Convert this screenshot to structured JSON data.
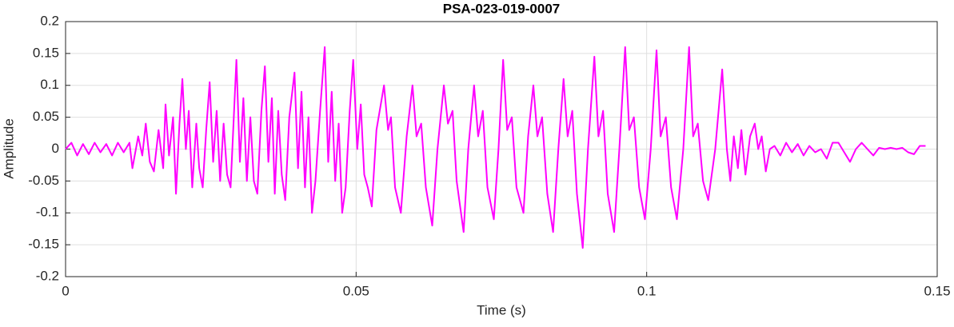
{
  "chart_data": {
    "type": "line",
    "title": "PSA-023-019-0007",
    "x_label": "Time (s)",
    "y_label": "Amplitude",
    "xlim": [
      0,
      0.15
    ],
    "ylim": [
      -0.2,
      0.2
    ],
    "xticks": [
      0,
      0.05,
      0.1,
      0.15
    ],
    "yticks": [
      -0.2,
      -0.15,
      -0.1,
      -0.05,
      0,
      0.05,
      0.1,
      0.15,
      0.2
    ],
    "grid": true,
    "series": [
      {
        "color": "#ff00ff",
        "x": [
          0,
          0.001,
          0.002,
          0.003,
          0.004,
          0.005,
          0.006,
          0.007,
          0.008,
          0.009,
          0.01,
          0.011,
          0.0115,
          0.0125,
          0.0132,
          0.0138,
          0.0145,
          0.0152,
          0.016,
          0.0168,
          0.0172,
          0.0178,
          0.0185,
          0.019,
          0.0196,
          0.0201,
          0.0207,
          0.0212,
          0.0218,
          0.0225,
          0.023,
          0.0236,
          0.0242,
          0.0248,
          0.0254,
          0.026,
          0.0266,
          0.0272,
          0.0278,
          0.0284,
          0.029,
          0.0294,
          0.03,
          0.0306,
          0.0312,
          0.0318,
          0.0324,
          0.033,
          0.0337,
          0.0343,
          0.0349,
          0.0355,
          0.036,
          0.0366,
          0.0372,
          0.0378,
          0.0385,
          0.0394,
          0.04,
          0.0406,
          0.0412,
          0.0418,
          0.0424,
          0.043,
          0.0438,
          0.0446,
          0.0452,
          0.0458,
          0.0464,
          0.047,
          0.0476,
          0.0482,
          0.0489,
          0.0495,
          0.0502,
          0.0508,
          0.0514,
          0.052,
          0.0527,
          0.0535,
          0.0548,
          0.0555,
          0.056,
          0.0567,
          0.0577,
          0.0587,
          0.0597,
          0.0604,
          0.0612,
          0.062,
          0.0631,
          0.064,
          0.0651,
          0.0658,
          0.0666,
          0.0673,
          0.0685,
          0.0693,
          0.0703,
          0.071,
          0.0718,
          0.0726,
          0.0737,
          0.0745,
          0.0753,
          0.076,
          0.0768,
          0.0776,
          0.0788,
          0.0796,
          0.0805,
          0.0812,
          0.082,
          0.0829,
          0.0839,
          0.0848,
          0.0857,
          0.0864,
          0.0872,
          0.088,
          0.089,
          0.0899,
          0.091,
          0.0917,
          0.0925,
          0.0933,
          0.0944,
          0.0953,
          0.0963,
          0.097,
          0.0978,
          0.0987,
          0.0997,
          0.1007,
          0.1017,
          0.1024,
          0.1033,
          0.1042,
          0.1052,
          0.1063,
          0.1073,
          0.108,
          0.1088,
          0.1097,
          0.1106,
          0.1118,
          0.113,
          0.1138,
          0.1144,
          0.115,
          0.1157,
          0.1163,
          0.117,
          0.1178,
          0.1186,
          0.1192,
          0.1198,
          0.1205,
          0.1212,
          0.122,
          0.123,
          0.124,
          0.125,
          0.126,
          0.127,
          0.128,
          0.129,
          0.13,
          0.131,
          0.132,
          0.133,
          0.134,
          0.135,
          0.136,
          0.137,
          0.138,
          0.139,
          0.14,
          0.141,
          0.142,
          0.143,
          0.144,
          0.145,
          0.146,
          0.147,
          0.148
        ],
        "values": [
          0,
          0.01,
          -0.01,
          0.008,
          -0.008,
          0.01,
          -0.005,
          0.008,
          -0.01,
          0.01,
          -0.005,
          0.01,
          -0.03,
          0.02,
          -0.01,
          0.04,
          -0.02,
          -0.035,
          0.03,
          -0.03,
          0.07,
          -0.01,
          0.05,
          -0.07,
          0.04,
          0.11,
          0,
          0.06,
          -0.06,
          0.04,
          -0.03,
          -0.06,
          0.03,
          0.105,
          -0.02,
          0.06,
          -0.05,
          0.04,
          -0.04,
          -0.06,
          0.06,
          0.14,
          -0.02,
          0.08,
          -0.05,
          0.05,
          -0.05,
          -0.07,
          0.06,
          0.13,
          -0.02,
          0.08,
          -0.07,
          0.06,
          -0.04,
          -0.08,
          0.05,
          0.12,
          -0.03,
          0.09,
          -0.06,
          0.05,
          -0.1,
          -0.05,
          0.06,
          0.16,
          -0.02,
          0.09,
          -0.05,
          0.04,
          -0.1,
          -0.06,
          0.06,
          0.14,
          0,
          0.07,
          -0.04,
          -0.06,
          -0.09,
          0.03,
          0.1,
          0.03,
          0.05,
          -0.06,
          -0.1,
          0.02,
          0.1,
          0.02,
          0.04,
          -0.06,
          -0.12,
          0,
          0.1,
          0.04,
          0.06,
          -0.05,
          -0.13,
          0,
          0.1,
          0.02,
          0.06,
          -0.06,
          -0.11,
          0,
          0.14,
          0.03,
          0.05,
          -0.06,
          -0.1,
          0.02,
          0.1,
          0.02,
          0.05,
          -0.07,
          -0.13,
          0,
          0.11,
          0.02,
          0.06,
          -0.07,
          -0.155,
          0,
          0.145,
          0.02,
          0.06,
          -0.07,
          -0.13,
          0,
          0.16,
          0.03,
          0.05,
          -0.06,
          -0.11,
          0,
          0.155,
          0.02,
          0.05,
          -0.06,
          -0.11,
          0,
          0.16,
          0.02,
          0.04,
          -0.05,
          -0.08,
          0,
          0.125,
          0,
          -0.05,
          0.02,
          -0.03,
          0.03,
          -0.04,
          0.02,
          0.04,
          0,
          0.02,
          -0.035,
          0,
          0.005,
          -0.01,
          0.01,
          -0.005,
          0.008,
          -0.01,
          0.005,
          -0.005,
          0,
          -0.015,
          0.01,
          0.01,
          -0.005,
          -0.02,
          0,
          0.01,
          0,
          -0.01,
          0.002,
          0,
          0.002,
          0,
          0.002,
          -0.005,
          -0.008,
          0.005,
          0.005
        ]
      }
    ]
  }
}
